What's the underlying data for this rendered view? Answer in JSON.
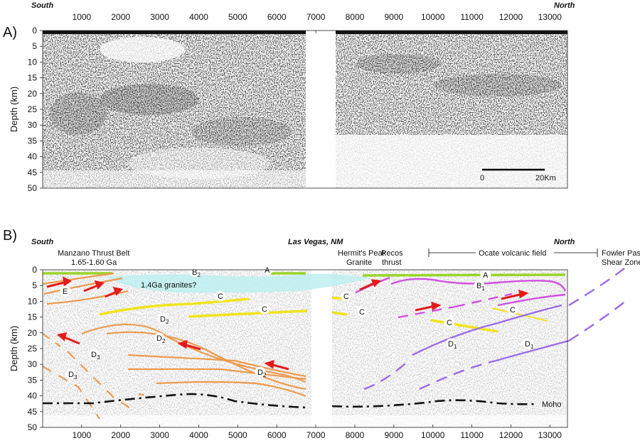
{
  "panel_a": {
    "label": "A)",
    "south": "South",
    "north": "North",
    "ylabel": "Depth (km)",
    "x_ticks": [
      "1000",
      "2000",
      "3000",
      "4000",
      "5000",
      "6000",
      "7000",
      "8000",
      "9000",
      "10000",
      "11000",
      "12000",
      "13000"
    ],
    "y_ticks": [
      "0",
      "5",
      "10",
      "15",
      "20",
      "25",
      "30",
      "35",
      "40",
      "45",
      "50"
    ],
    "scale_start": "0",
    "scale_end": "20Km"
  },
  "panel_b": {
    "label": "B)",
    "south": "South",
    "north": "North",
    "center_title": "Las Vegas, NM",
    "ylabel": "Depth (km)",
    "x_ticks": [
      "1000",
      "2000",
      "3000",
      "4000",
      "5000",
      "6000",
      "7000",
      "8000",
      "9000",
      "10000",
      "11000",
      "12000",
      "13000"
    ],
    "y_ticks": [
      "0",
      "5",
      "10",
      "15",
      "20",
      "25",
      "30",
      "35",
      "40",
      "45",
      "50"
    ],
    "annotations": {
      "manzano_1": "Manzano Thrust Belt",
      "manzano_2": "1.65-1.60 Ga",
      "hermit_1": "Hermit's Peak",
      "hermit_2": "Granite",
      "pecos_1": "Pecos",
      "pecos_2": "thrust",
      "ocate": "Ocate volcanic field",
      "fowler_1": "Fowler Pass",
      "fowler_2": "Shear Zone",
      "granites": "1.4Ga granites?",
      "moho": "Moho"
    },
    "reflector_labels": {
      "A": "A",
      "B": "B",
      "C": "C",
      "D": "D",
      "E": "E",
      "sub1": "1",
      "sub2": "2",
      "sub3": "3"
    }
  },
  "colors": {
    "green": "#9ad42a",
    "yellow": "#f1e41a",
    "orange": "#ee9a4c",
    "magenta": "#d14fe0",
    "purple": "#9b6ce8",
    "red": "#e41b1b",
    "cyan": "#bdeef0",
    "moho": "#111111"
  }
}
